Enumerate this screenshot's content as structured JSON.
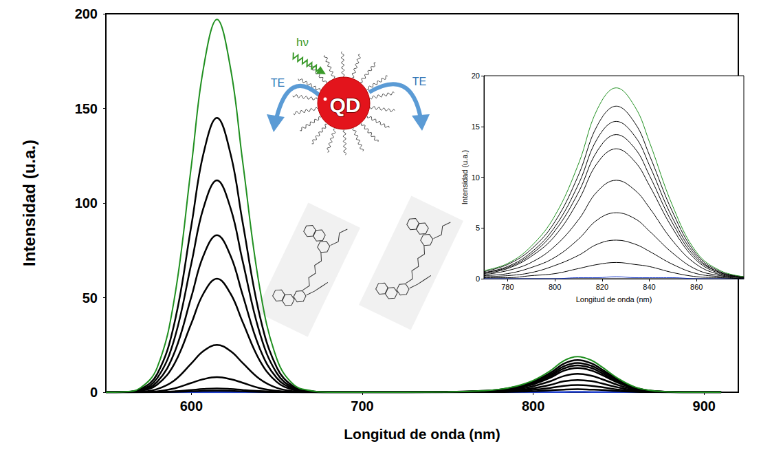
{
  "chart_data": [
    {
      "type": "line",
      "xlabel": "Longitud de onda (nm)",
      "ylabel": "Intensidad (u.a.)",
      "xlim": [
        550,
        920
      ],
      "xticks": [
        600,
        700,
        800,
        900
      ],
      "ylim": [
        0,
        200
      ],
      "yticks": [
        0,
        50,
        100,
        150,
        200
      ],
      "grid": false,
      "annotations": [
        "hν",
        "TE",
        "TE",
        "QD"
      ],
      "x": [
        550,
        560,
        570,
        580,
        590,
        600,
        607,
        615,
        623,
        630,
        640,
        650,
        660,
        670,
        680,
        700,
        750,
        770,
        780,
        790,
        800,
        810,
        818,
        826,
        834,
        840,
        850,
        860,
        870,
        880,
        890,
        910
      ],
      "series": [
        {
          "color": "#1f8f1f",
          "values": [
            0,
            0.2,
            2.2,
            13.0,
            49.1,
            119.6,
            170.8,
            197,
            170.8,
            122.1,
            55.2,
            17.7,
            3.9,
            0.8,
            0,
            0,
            0.2,
            0.8,
            1.5,
            3.2,
            6.2,
            11.3,
            16.7,
            18.8,
            16.9,
            13.5,
            7.1,
            2.6,
            0.8,
            0.2,
            0,
            0
          ]
        },
        {
          "color": "#000000",
          "values": [
            0,
            0.1,
            1.6,
            9.6,
            36.1,
            88.0,
            125.7,
            145,
            125.7,
            89.9,
            40.6,
            13.1,
            2.9,
            0.6,
            0,
            0,
            0.2,
            0.7,
            1.4,
            2.9,
            5.6,
            10.2,
            15.1,
            17,
            15.3,
            12.2,
            6.5,
            2.4,
            0.7,
            0.2,
            0,
            0
          ]
        },
        {
          "color": "#000000",
          "values": [
            0,
            0.1,
            1.2,
            7.4,
            27.9,
            68.0,
            97.1,
            112,
            97.1,
            69.4,
            31.4,
            10.1,
            2.2,
            0.4,
            0,
            0,
            0.2,
            0.6,
            1.2,
            2.6,
            5.1,
            9.3,
            13.8,
            15.5,
            14.0,
            11.2,
            5.9,
            2.2,
            0.6,
            0.2,
            0,
            0
          ]
        },
        {
          "color": "#000000",
          "values": [
            0,
            0.1,
            0.9,
            5.5,
            20.7,
            50.4,
            72.0,
            83,
            72.0,
            51.5,
            23.2,
            7.5,
            1.7,
            0.3,
            0,
            0,
            0.1,
            0.6,
            1.1,
            2.4,
            4.7,
            8.5,
            12.6,
            14.2,
            12.8,
            10.2,
            5.4,
            2.0,
            0.6,
            0.1,
            0,
            0
          ]
        },
        {
          "color": "#000000",
          "values": [
            0,
            0.1,
            0.7,
            4.0,
            14.9,
            36.4,
            52.0,
            60,
            52.0,
            37.2,
            16.8,
            5.4,
            1.2,
            0.2,
            0,
            0,
            0.1,
            0.5,
            1.0,
            2.2,
            4.2,
            7.7,
            11.4,
            12.8,
            11.5,
            9.2,
            4.9,
            1.8,
            0.5,
            0.1,
            0,
            0
          ]
        },
        {
          "color": "#000000",
          "values": [
            0,
            0,
            0.3,
            1.7,
            6.2,
            15.2,
            21.7,
            25,
            21.7,
            15.5,
            7.0,
            2.3,
            0.5,
            0.1,
            0,
            0,
            0.1,
            0.4,
            0.8,
            1.6,
            3.2,
            5.8,
            8.6,
            9.7,
            8.7,
            7.0,
            3.7,
            1.4,
            0.4,
            0.1,
            0,
            0
          ]
        },
        {
          "color": "#000000",
          "values": [
            0,
            0,
            0.1,
            0.5,
            2.0,
            4.9,
            6.9,
            8,
            6.9,
            5.0,
            2.2,
            0.7,
            0.2,
            0,
            0,
            0,
            0.1,
            0.3,
            0.5,
            1.1,
            2.1,
            3.9,
            5.8,
            6.5,
            5.9,
            4.7,
            2.5,
            0.9,
            0.3,
            0.1,
            0,
            0
          ]
        },
        {
          "color": "#000000",
          "values": [
            0,
            0,
            0,
            0.1,
            0.5,
            1.2,
            1.7,
            2,
            1.7,
            1.2,
            0.6,
            0.2,
            0,
            0,
            0,
            0,
            0,
            0.2,
            0.3,
            0.6,
            1.3,
            2.3,
            3.4,
            3.8,
            3.4,
            2.7,
            1.4,
            0.5,
            0.2,
            0,
            0,
            0
          ]
        },
        {
          "color": "#000000",
          "values": [
            0,
            0,
            0,
            0.1,
            0.2,
            0.5,
            0.7,
            0.8,
            0.7,
            0.5,
            0.2,
            0.1,
            0,
            0,
            0,
            0,
            0,
            0.1,
            0.1,
            0.3,
            0.5,
            1.0,
            1.4,
            1.6,
            1.4,
            1.2,
            0.6,
            0.2,
            0.1,
            0,
            0,
            0
          ]
        },
        {
          "color": "#1f3fcc",
          "values": [
            0,
            0,
            0,
            0,
            0,
            0,
            0,
            0,
            0,
            0,
            0,
            0,
            0,
            0,
            0,
            0,
            0,
            0,
            0,
            0,
            0,
            0.1,
            0.1,
            0.2,
            0.1,
            0.1,
            0.1,
            0,
            0,
            0,
            0,
            0
          ]
        }
      ]
    },
    {
      "type": "line",
      "xlabel": "Longitud de onda (nm)",
      "ylabel": "Intensidad (u.a.)",
      "xlim": [
        770,
        880
      ],
      "xticks": [
        780,
        800,
        820,
        840,
        860
      ],
      "ylim": [
        0,
        20
      ],
      "yticks": [
        0,
        5,
        10,
        15,
        20
      ],
      "grid": false,
      "x": [
        770,
        780,
        790,
        800,
        810,
        818,
        826,
        834,
        840,
        850,
        860,
        870,
        880
      ],
      "series": [
        {
          "color": "#1f8f1f",
          "values": [
            0.8,
            1.5,
            3.2,
            6.2,
            11.3,
            16.7,
            18.8,
            16.9,
            13.5,
            7.1,
            2.6,
            0.8,
            0.2
          ]
        },
        {
          "color": "#000000",
          "values": [
            0.7,
            1.4,
            2.9,
            5.6,
            10.2,
            15.1,
            17,
            15.3,
            12.2,
            6.5,
            2.4,
            0.7,
            0.2
          ]
        },
        {
          "color": "#000000",
          "values": [
            0.6,
            1.2,
            2.6,
            5.1,
            9.3,
            13.8,
            15.5,
            14.0,
            11.2,
            5.9,
            2.2,
            0.6,
            0.2
          ]
        },
        {
          "color": "#000000",
          "values": [
            0.6,
            1.1,
            2.4,
            4.7,
            8.5,
            12.6,
            14.2,
            12.8,
            10.2,
            5.4,
            2.0,
            0.6,
            0.1
          ]
        },
        {
          "color": "#000000",
          "values": [
            0.5,
            1.0,
            2.2,
            4.2,
            7.7,
            11.4,
            12.8,
            11.5,
            9.2,
            4.9,
            1.8,
            0.5,
            0.1
          ]
        },
        {
          "color": "#000000",
          "values": [
            0.4,
            0.8,
            1.6,
            3.2,
            5.8,
            8.6,
            9.7,
            8.7,
            7.0,
            3.7,
            1.4,
            0.4,
            0.1
          ]
        },
        {
          "color": "#000000",
          "values": [
            0.3,
            0.5,
            1.1,
            2.1,
            3.9,
            5.8,
            6.5,
            5.9,
            4.7,
            2.5,
            0.9,
            0.3,
            0.1
          ]
        },
        {
          "color": "#000000",
          "values": [
            0.2,
            0.3,
            0.6,
            1.3,
            2.3,
            3.4,
            3.8,
            3.4,
            2.7,
            1.4,
            0.5,
            0.2,
            0
          ]
        },
        {
          "color": "#000000",
          "values": [
            0.1,
            0.1,
            0.3,
            0.5,
            1.0,
            1.4,
            1.6,
            1.4,
            1.2,
            0.6,
            0.2,
            0.1,
            0
          ]
        },
        {
          "color": "#1f3fcc",
          "values": [
            0,
            0,
            0,
            0,
            0.1,
            0.1,
            0.2,
            0.1,
            0.1,
            0.1,
            0,
            0,
            0
          ]
        }
      ]
    }
  ]
}
